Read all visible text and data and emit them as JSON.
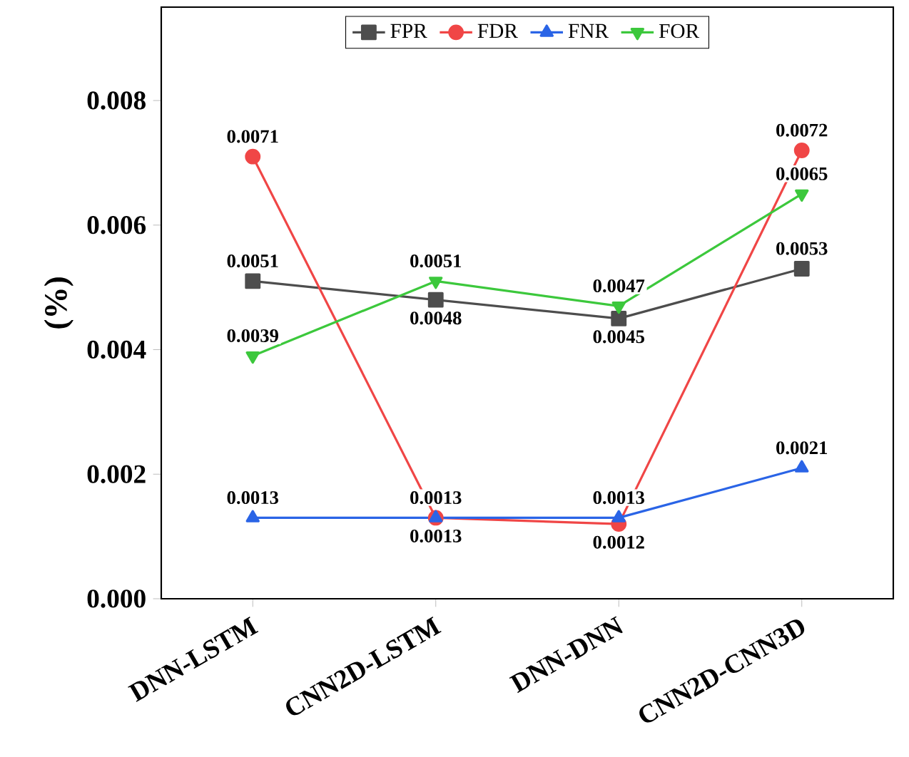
{
  "chart_data": {
    "type": "line",
    "ylabel": "(%)",
    "categories": [
      "DNN-LSTM",
      "CNN2D-LSTM",
      "DNN-DNN",
      "CNN2D-CNN3D"
    ],
    "ylim": [
      0,
      0.0095
    ],
    "yticks": [
      {
        "value": 0,
        "label": "0.000"
      },
      {
        "value": 0.002,
        "label": "0.002"
      },
      {
        "value": 0.004,
        "label": "0.004"
      },
      {
        "value": 0.006,
        "label": "0.006"
      },
      {
        "value": 0.008,
        "label": "0.008"
      }
    ],
    "legend": "top",
    "grid": false,
    "series": [
      {
        "name": "FPR",
        "color": "#4d4d4d",
        "marker": "square",
        "values": [
          0.0051,
          0.0048,
          0.0045,
          0.0053
        ],
        "value_labels": [
          "0.0051",
          "0.0048",
          "0.0045",
          "0.0053"
        ]
      },
      {
        "name": "FDR",
        "color": "#f04646",
        "marker": "circle",
        "values": [
          0.0071,
          0.0013,
          0.0012,
          0.0072
        ],
        "value_labels": [
          "0.0071",
          "0.0013",
          "0.0012",
          "0.0072"
        ]
      },
      {
        "name": "FNR",
        "color": "#2a64e6",
        "marker": "triangle",
        "values": [
          0.0013,
          0.0013,
          0.0013,
          0.0021
        ],
        "value_labels": [
          "0.0013",
          "0.0013",
          "0.0013",
          "0.0021"
        ]
      },
      {
        "name": "FOR",
        "color": "#3cc83c",
        "marker": "triangle down",
        "values": [
          0.0039,
          0.0051,
          0.0047,
          0.0065
        ],
        "value_labels": [
          "0.0039",
          "0.0051",
          "0.0047",
          "0.0065"
        ]
      }
    ]
  }
}
